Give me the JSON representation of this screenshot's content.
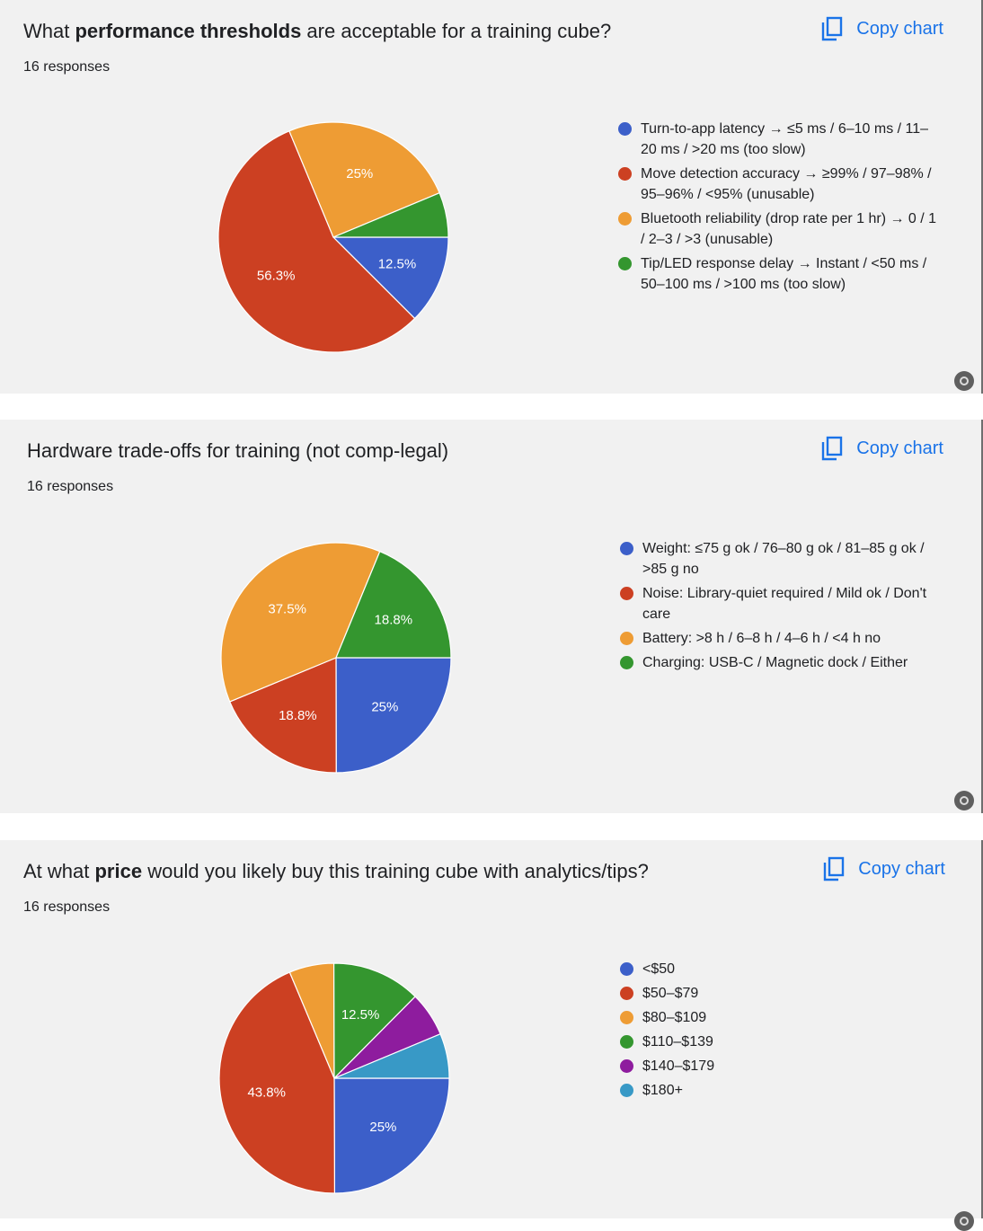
{
  "copy_label": "Copy chart",
  "colors": {
    "blue": "#3c5fc9",
    "red": "#cc4022",
    "orange": "#ee9c34",
    "green": "#34962f",
    "purple": "#8e1c9e",
    "teal": "#3899c6",
    "link": "#1a73e8",
    "card": "#f1f1f1"
  },
  "charts": [
    {
      "title_pre": "What ",
      "title_bold": "performance thresholds",
      "title_post": " are acceptable for a training cube?",
      "responses": "16 responses"
    },
    {
      "title_pre": "Hardware trade-offs for training (not comp-legal)",
      "title_bold": "",
      "title_post": "",
      "responses": "16 responses"
    },
    {
      "title_pre": "At what ",
      "title_bold": "price",
      "title_post": " would you likely buy this training cube with analytics/tips?",
      "responses": "16 responses"
    }
  ],
  "chart_data": [
    {
      "type": "pie",
      "categories": [
        "Turn-to-app latency → ≤5 ms / 6–10 ms / 11–20 ms / >20 ms (too slow)",
        "Move detection accuracy → ≥99% / 97–98% / 95–96% / <95% (unusable)",
        "Bluetooth reliability (drop rate per 1 hr) → 0 / 1 / 2–3 / >3 (unusable)",
        "Tip/LED response delay → Instant / <50 ms / 50–100 ms / >100 ms (too slow)"
      ],
      "values": [
        12.5,
        56.3,
        25,
        6.3
      ],
      "labels": [
        "12.5%",
        "56.3%",
        "25%",
        ""
      ],
      "colors": [
        "#3c5fc9",
        "#cc4022",
        "#ee9c34",
        "#34962f"
      ],
      "legend_position": "right"
    },
    {
      "type": "pie",
      "categories": [
        "Weight: ≤75 g ok / 76–80 g ok / 81–85 g ok / >85 g no",
        "Noise: Library-quiet required / Mild ok / Don't care",
        "Battery: >8 h / 6–8 h / 4–6 h / <4 h no",
        "Charging: USB-C / Magnetic dock / Either"
      ],
      "values": [
        25,
        18.8,
        37.5,
        18.8
      ],
      "labels": [
        "25%",
        "18.8%",
        "37.5%",
        "18.8%"
      ],
      "colors": [
        "#3c5fc9",
        "#cc4022",
        "#ee9c34",
        "#34962f"
      ],
      "legend_position": "right"
    },
    {
      "type": "pie",
      "categories": [
        "<$50",
        "$50–$79",
        "$80–$109",
        "$110–$139",
        "$140–$179",
        "$180+"
      ],
      "values": [
        25,
        43.8,
        6.3,
        12.5,
        6.3,
        6.3
      ],
      "labels": [
        "25%",
        "43.8%",
        "",
        "12.5%",
        "",
        ""
      ],
      "colors": [
        "#3c5fc9",
        "#cc4022",
        "#ee9c34",
        "#34962f",
        "#8e1c9e",
        "#3899c6"
      ],
      "legend_position": "right"
    }
  ]
}
